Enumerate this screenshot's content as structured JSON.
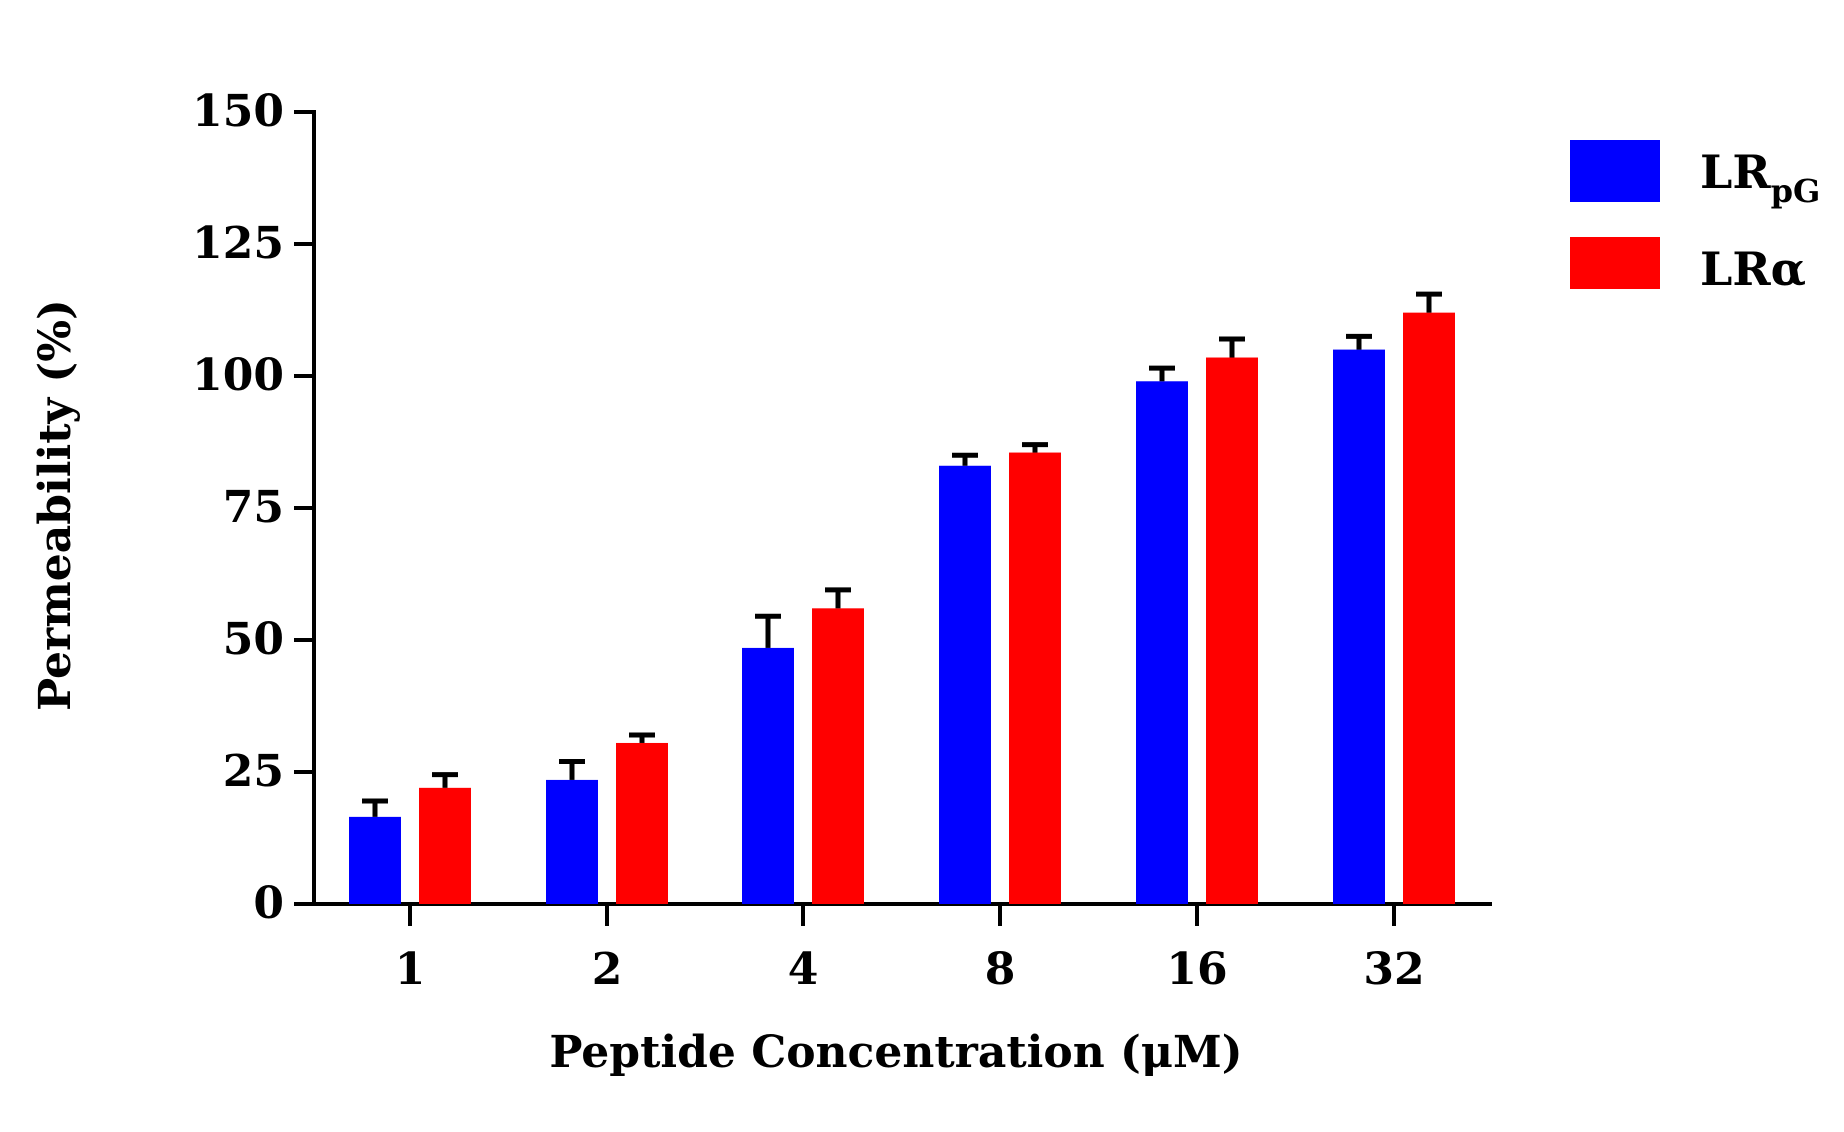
{
  "chart_data": {
    "type": "bar",
    "title": "",
    "xlabel": "Peptide Concentration (μM)",
    "ylabel": "Permeability (%)",
    "ylim": [
      0,
      150
    ],
    "yticks": [
      0,
      25,
      50,
      75,
      100,
      125,
      150
    ],
    "ytick_labels": [
      "0",
      "25",
      "50",
      "75",
      "100",
      "125",
      "150"
    ],
    "categories": [
      "1",
      "2",
      "4",
      "8",
      "16",
      "32"
    ],
    "grid": false,
    "legend_position": "top-right",
    "series": [
      {
        "name": "LRpG",
        "legend_main": "LR",
        "legend_sub": "pG",
        "color": "#0000ff",
        "values": [
          16.5,
          23.5,
          48.5,
          83.0,
          99.0,
          105.0
        ],
        "errors": [
          3.0,
          3.5,
          6.0,
          2.0,
          2.5,
          2.5
        ]
      },
      {
        "name": "LRα",
        "legend_main": "LRα",
        "legend_sub": "",
        "color": "#ff0000",
        "values": [
          22.0,
          30.5,
          56.0,
          85.5,
          103.5,
          112.0
        ],
        "errors": [
          2.5,
          1.5,
          3.5,
          1.5,
          3.5,
          3.5
        ]
      }
    ]
  }
}
